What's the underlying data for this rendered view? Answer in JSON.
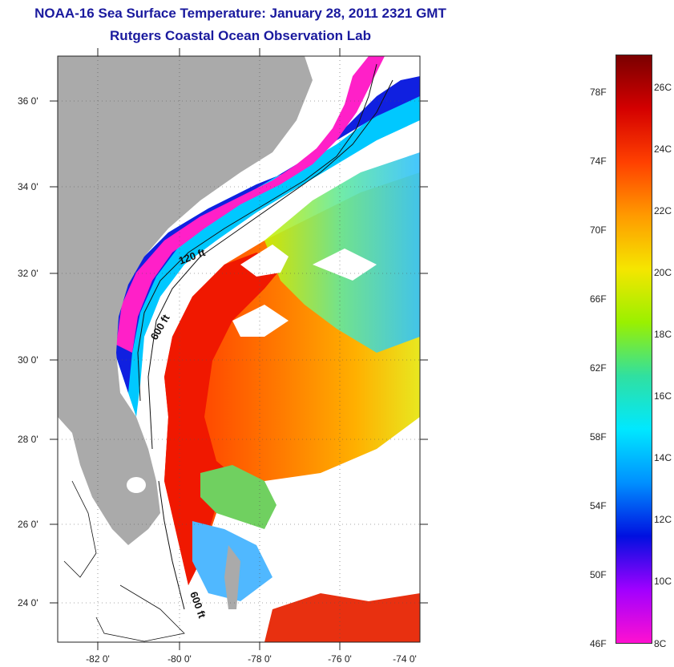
{
  "title": {
    "line1": "NOAA-16 Sea Surface Temperature:  January 28, 2011 2321 GMT",
    "line2": "Rutgers Coastal Ocean Observation Lab"
  },
  "axes": {
    "lat_labels": [
      "36 0'",
      "34 0'",
      "32 0'",
      "30 0'",
      "28 0'",
      "26 0'",
      "24 0'"
    ],
    "lon_labels": [
      "-82 0'",
      "-80 0'",
      "-78 0'",
      "-76 0'",
      "-74 0'"
    ]
  },
  "contours": {
    "label_120": "120 ft",
    "label_600a": "600 ft",
    "label_600b": "600 ft"
  },
  "colorbar": {
    "fahrenheit": [
      "78F",
      "74F",
      "70F",
      "66F",
      "62F",
      "58F",
      "54F",
      "50F",
      "46F"
    ],
    "celsius": [
      "26C",
      "24C",
      "22C",
      "20C",
      "18C",
      "16C",
      "14C",
      "12C",
      "10C",
      "8C"
    ],
    "colors_top_to_bottom": [
      "#7a0000",
      "#d40000",
      "#ff4000",
      "#ff9a00",
      "#f5e600",
      "#9af000",
      "#30e0a0",
      "#00e8ff",
      "#0090ff",
      "#0010e0",
      "#a000ff",
      "#ff10d0"
    ]
  },
  "land_color": "#aaaaaa"
}
